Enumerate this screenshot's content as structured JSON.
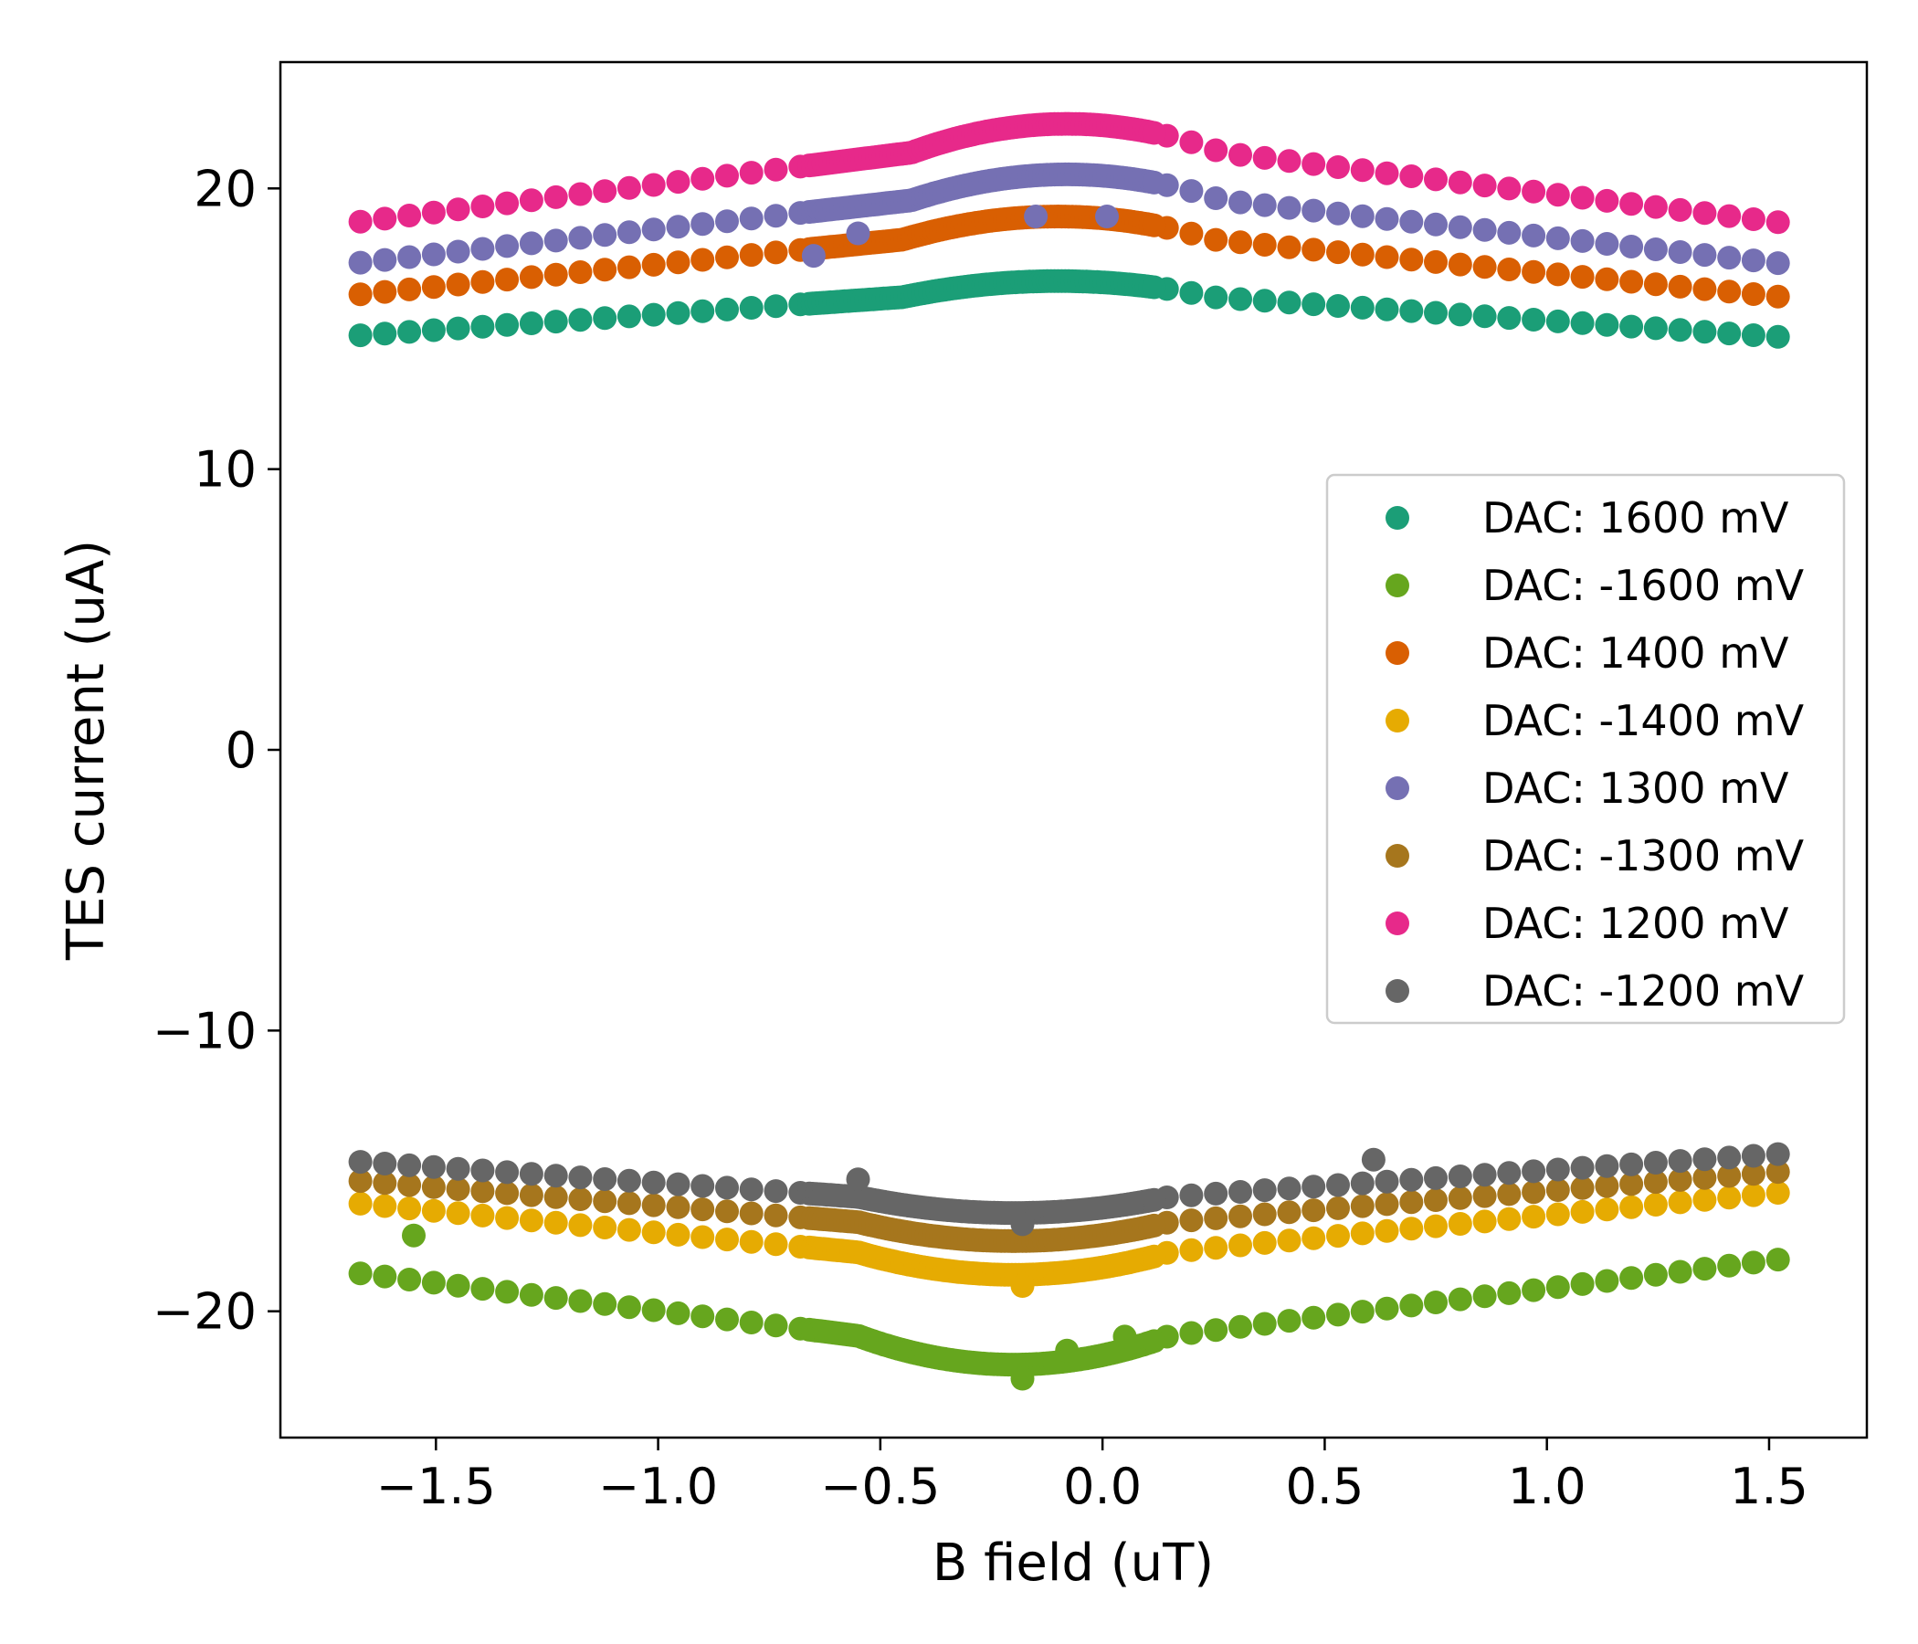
{
  "chart_data": {
    "type": "scatter",
    "title": "",
    "xlabel": "B field (uT)",
    "ylabel": "TES current (uA)",
    "xlim": [
      -1.85,
      1.72
    ],
    "ylim": [
      -24.5,
      24.5
    ],
    "xticks": [
      -1.5,
      -1.0,
      -0.5,
      0.0,
      0.5,
      1.0,
      1.5
    ],
    "xtick_labels": [
      "−1.5",
      "−1.0",
      "−0.5",
      "0.0",
      "0.5",
      "1.0",
      "1.5"
    ],
    "yticks": [
      -20,
      -10,
      0,
      10,
      20
    ],
    "ytick_labels": [
      "−20",
      "−10",
      "0",
      "10",
      "20"
    ],
    "grid": false,
    "legend_position": "center-right",
    "series": [
      {
        "name": "DAC: 1600 mV",
        "color": "#1b9e77",
        "sign": 1,
        "edge": 14.4,
        "peak": 16.7,
        "center": -0.1,
        "outliers": []
      },
      {
        "name": "DAC: -1600 mV",
        "color": "#66a61e",
        "sign": -1,
        "edge": 17.8,
        "peak": 21.9,
        "center": -0.2,
        "outliers": [
          [
            -1.55,
            -17.3
          ],
          [
            -0.18,
            -22.4
          ],
          [
            0.05,
            -20.9
          ],
          [
            -0.08,
            -21.4
          ]
        ]
      },
      {
        "name": "DAC: 1400 mV",
        "color": "#d95f02",
        "sign": 1,
        "edge": 15.7,
        "peak": 19.0,
        "center": -0.1,
        "outliers": []
      },
      {
        "name": "DAC: -1400 mV",
        "color": "#e6ab02",
        "sign": -1,
        "edge": 15.5,
        "peak": 18.7,
        "center": -0.2,
        "outliers": [
          [
            -0.18,
            -19.1
          ]
        ]
      },
      {
        "name": "DAC: 1300 mV",
        "color": "#7570b3",
        "sign": 1,
        "edge": 16.8,
        "peak": 20.5,
        "center": -0.08,
        "outliers": [
          [
            -0.65,
            17.6
          ],
          [
            -0.55,
            18.4
          ],
          [
            -0.15,
            19.0
          ],
          [
            0.01,
            19.0
          ]
        ]
      },
      {
        "name": "DAC: -1300 mV",
        "color": "#a6761d",
        "sign": -1,
        "edge": 14.8,
        "peak": 17.5,
        "center": -0.2,
        "outliers": []
      },
      {
        "name": "DAC: 1200 mV",
        "color": "#e7298a",
        "sign": 1,
        "edge": 18.2,
        "peak": 22.3,
        "center": -0.08,
        "outliers": []
      },
      {
        "name": "DAC: -1200 mV",
        "color": "#666666",
        "sign": -1,
        "edge": 14.2,
        "peak": 16.5,
        "center": -0.2,
        "outliers": [
          [
            -0.55,
            -15.3
          ],
          [
            0.61,
            -14.6
          ],
          [
            -0.18,
            -16.9
          ]
        ]
      }
    ]
  }
}
